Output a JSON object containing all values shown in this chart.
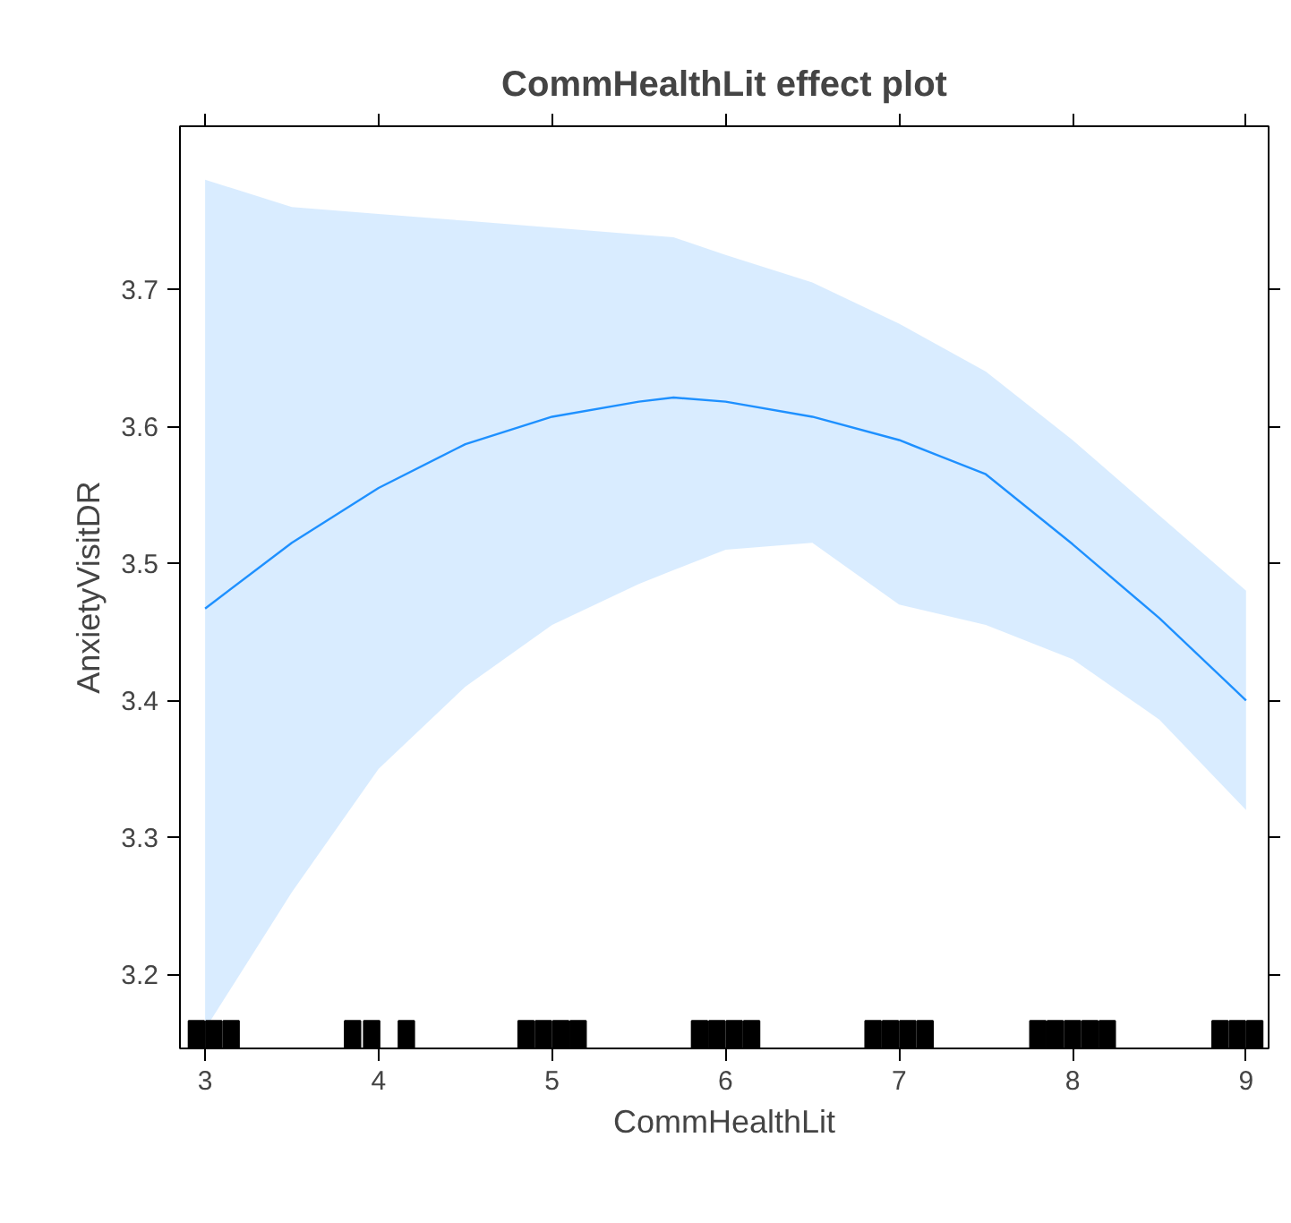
{
  "chart_data": {
    "type": "line",
    "title": "CommHealthLit effect plot",
    "xlabel": "CommHealthLit",
    "ylabel": "AnxietyVisitDR",
    "xlim": [
      2.855,
      9.13
    ],
    "ylim": [
      3.146,
      3.819
    ],
    "xticks": [
      3,
      4,
      5,
      6,
      7,
      8,
      9
    ],
    "yticks": [
      3.2,
      3.3,
      3.4,
      3.5,
      3.6,
      3.7
    ],
    "grid": false,
    "series": [
      {
        "color": "#1e90ff",
        "x": [
          3,
          3.5,
          4,
          4.5,
          5,
          5.5,
          5.7,
          6,
          6.5,
          7,
          7.5,
          8,
          8.5,
          9
        ],
        "values": [
          3.467,
          3.515,
          3.555,
          3.587,
          3.607,
          3.618,
          3.621,
          3.618,
          3.607,
          3.59,
          3.565,
          3.514,
          3.46,
          3.4
        ],
        "lower": [
          3.16,
          3.26,
          3.35,
          3.41,
          3.455,
          3.485,
          3.495,
          3.51,
          3.515,
          3.47,
          3.455,
          3.43,
          3.386,
          3.32
        ],
        "upper": [
          3.78,
          3.76,
          3.755,
          3.75,
          3.745,
          3.74,
          3.738,
          3.725,
          3.705,
          3.675,
          3.64,
          3.59,
          3.535,
          3.48
        ]
      },
      {
        "type": "scatter",
        "color": "#000000",
        "marker": "square",
        "x": [
          2.95,
          3.05,
          3.15,
          3.85,
          3.96,
          4.16,
          4.85,
          4.95,
          5.05,
          5.15,
          5.85,
          5.95,
          6.05,
          6.15,
          6.85,
          6.95,
          7.05,
          7.15,
          7.8,
          7.9,
          8.0,
          8.1,
          8.2,
          8.85,
          8.95,
          9.05
        ],
        "values": [
          3.155,
          3.155,
          3.155,
          3.155,
          3.155,
          3.155,
          3.155,
          3.155,
          3.155,
          3.155,
          3.155,
          3.155,
          3.155,
          3.155,
          3.155,
          3.155,
          3.155,
          3.155,
          3.155,
          3.155,
          3.155,
          3.155,
          3.155,
          3.155,
          3.155,
          3.155
        ]
      }
    ]
  }
}
